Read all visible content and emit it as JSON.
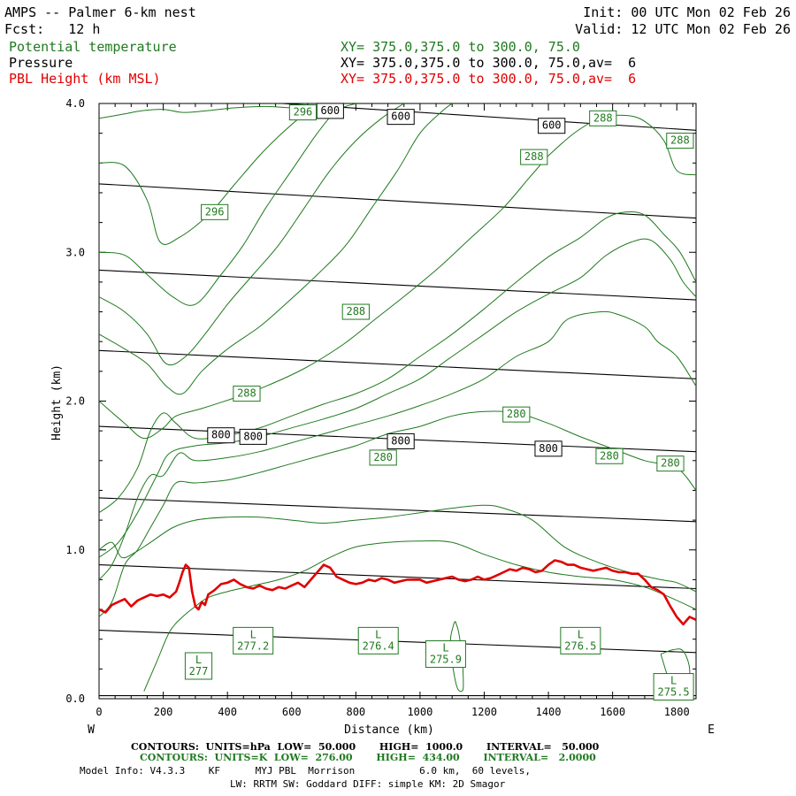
{
  "header": {
    "title": "AMPS -- Palmer 6-km nest",
    "fcst": "Fcst:   12 h",
    "init": "Init: 00 UTC Mon 02 Feb 26",
    "valid": "Valid: 12 UTC Mon 02 Feb 26",
    "field1": "Potential temperature",
    "field1_xy": "XY= 375.0,375.0 to 300.0, 75.0",
    "field2": "Pressure",
    "field2_xy": "XY= 375.0,375.0 to 300.0, 75.0,av=  6",
    "field3": "PBL Height (km MSL)",
    "field3_xy": "XY= 375.0,375.0 to 300.0, 75.0,av=  6"
  },
  "colors": {
    "theta": "#1f7a1f",
    "pressure": "#000000",
    "pbl": "#e00000"
  },
  "footer": {
    "line1": "CONTOURS:  UNITS=hPa  LOW=  50.000       HIGH=  1000.0       INTERVAL=   50.000",
    "line2": "CONTOURS:  UNITS=K  LOW=  276.00       HIGH=  434.00       INTERVAL=   2.0000",
    "line3": "Model Info: V4.3.3    KF      MYJ PBL  Morrison           6.0 km,  60 levels,",
    "line4": "LW: RRTM SW: Goddard DIFF: simple KM: 2D Smagor"
  },
  "chart_data": {
    "type": "line",
    "xlabel": "Distance (km)",
    "ylabel": "Height (km)",
    "xlim": [
      0,
      1860
    ],
    "ylim": [
      0.0,
      4.0
    ],
    "x_ticks": [
      0,
      200,
      400,
      600,
      800,
      1000,
      1200,
      1400,
      1600,
      1800
    ],
    "x_ticks_minor_step": 50,
    "y_ticks": [
      0.0,
      1.0,
      2.0,
      3.0,
      4.0
    ],
    "y_tick_labels": [
      "0.0",
      "1.0",
      "2.0",
      "3.0",
      "4.0"
    ],
    "y_ticks_minor_step": 0.2,
    "west_label": "W",
    "east_label": "E",
    "pressure_contours": [
      {
        "level": 1000,
        "x": [
          0,
          1860
        ],
        "y": [
          0.02,
          0.02
        ]
      },
      {
        "level": 950,
        "x": [
          0,
          1860
        ],
        "y": [
          0.46,
          0.31
        ]
      },
      {
        "level": 900,
        "x": [
          0,
          1860
        ],
        "y": [
          0.9,
          0.74
        ]
      },
      {
        "level": 850,
        "x": [
          0,
          1860
        ],
        "y": [
          1.35,
          1.19
        ]
      },
      {
        "level": 800,
        "x": [
          0,
          1860
        ],
        "y": [
          1.83,
          1.66
        ]
      },
      {
        "level": 750,
        "x": [
          0,
          1860
        ],
        "y": [
          2.34,
          2.15
        ]
      },
      {
        "level": 700,
        "x": [
          0,
          1860
        ],
        "y": [
          2.88,
          2.68
        ]
      },
      {
        "level": 650,
        "x": [
          0,
          1860
        ],
        "y": [
          3.46,
          3.23
        ]
      },
      {
        "level": 600,
        "x": [
          0,
          1860
        ],
        "y": [
          4.08,
          3.82
        ]
      }
    ],
    "pressure_labels": [
      {
        "text": "800",
        "x": 380,
        "y": 1.77
      },
      {
        "text": "800",
        "x": 480,
        "y": 1.76
      },
      {
        "text": "800",
        "x": 940,
        "y": 1.73
      },
      {
        "text": "800",
        "x": 1400,
        "y": 1.68
      },
      {
        "text": "600",
        "x": 720,
        "y": 3.95
      },
      {
        "text": "600",
        "x": 940,
        "y": 3.91
      },
      {
        "text": "600",
        "x": 1410,
        "y": 3.85
      }
    ],
    "theta_contours": [
      {
        "x": [
          0,
          80,
          130,
          200,
          260,
          330,
          420,
          520,
          620,
          700,
          740
        ],
        "y": [
          3.9,
          3.93,
          3.95,
          3.96,
          3.94,
          3.95,
          3.97,
          3.98,
          3.97,
          3.99,
          4.0
        ]
      },
      {
        "x": [
          0,
          80,
          150,
          190,
          250,
          340,
          420,
          500,
          560,
          640,
          700
        ],
        "y": [
          3.6,
          3.58,
          3.35,
          3.07,
          3.1,
          3.25,
          3.45,
          3.65,
          3.78,
          3.93,
          4.0
        ]
      },
      {
        "x": [
          0,
          80,
          150,
          230,
          300,
          380,
          450,
          520,
          600,
          680,
          740,
          800
        ],
        "y": [
          3.0,
          2.98,
          2.85,
          2.7,
          2.65,
          2.85,
          3.05,
          3.3,
          3.55,
          3.8,
          3.95,
          4.0
        ]
      },
      {
        "x": [
          0,
          80,
          150,
          210,
          270,
          330,
          400,
          480,
          560,
          640,
          720,
          800,
          880,
          950
        ],
        "y": [
          2.7,
          2.6,
          2.45,
          2.25,
          2.3,
          2.45,
          2.65,
          2.85,
          3.05,
          3.3,
          3.55,
          3.75,
          3.9,
          4.0
        ]
      },
      {
        "x": [
          0,
          80,
          150,
          210,
          260,
          320,
          400,
          500,
          580,
          680,
          770,
          850,
          930,
          1000,
          1070,
          1100
        ],
        "y": [
          2.45,
          2.35,
          2.25,
          2.1,
          2.05,
          2.2,
          2.35,
          2.5,
          2.65,
          2.85,
          3.05,
          3.3,
          3.55,
          3.8,
          3.95,
          4.0
        ]
      },
      {
        "x": [
          0,
          80,
          140,
          200,
          240,
          320,
          420,
          520,
          640,
          760,
          860,
          960,
          1060,
          1160,
          1260,
          1340,
          1400
        ],
        "y": [
          2.0,
          1.85,
          1.75,
          1.82,
          1.9,
          1.95,
          2.02,
          2.1,
          2.22,
          2.38,
          2.55,
          2.72,
          2.9,
          3.1,
          3.3,
          3.5,
          3.65
        ]
      },
      {
        "x": [
          1400,
          1480,
          1560,
          1640,
          1700,
          1760,
          1800,
          1860
        ],
        "y": [
          3.65,
          3.8,
          3.9,
          3.92,
          3.88,
          3.75,
          3.55,
          3.52
        ]
      },
      {
        "x": [
          0,
          60,
          120,
          160,
          200,
          240,
          300,
          400,
          500,
          600,
          700,
          800,
          900,
          1000,
          1100,
          1200,
          1300,
          1400,
          1500,
          1580,
          1640,
          1700,
          1760,
          1810,
          1860
        ],
        "y": [
          1.25,
          1.35,
          1.55,
          1.8,
          1.92,
          1.85,
          1.75,
          1.77,
          1.82,
          1.9,
          1.98,
          2.05,
          2.15,
          2.3,
          2.45,
          2.62,
          2.8,
          2.97,
          3.1,
          3.23,
          3.27,
          3.25,
          3.12,
          3.0,
          2.8
        ]
      },
      {
        "x": [
          0,
          60,
          120,
          180,
          220,
          300,
          400,
          500,
          600,
          700,
          800,
          900,
          1000,
          1100,
          1200,
          1300,
          1400,
          1500,
          1580,
          1660,
          1720,
          1780,
          1820,
          1860
        ],
        "y": [
          0.95,
          1.05,
          1.25,
          1.5,
          1.65,
          1.7,
          1.72,
          1.76,
          1.82,
          1.88,
          1.95,
          2.05,
          2.15,
          2.3,
          2.45,
          2.6,
          2.72,
          2.83,
          2.98,
          3.07,
          3.08,
          2.95,
          2.8,
          2.7
        ]
      },
      {
        "x": [
          0,
          40,
          80,
          120,
          160,
          200,
          250,
          300,
          400,
          500,
          600,
          700,
          800,
          900,
          1000,
          1100,
          1200,
          1300,
          1400,
          1460,
          1560,
          1620,
          1700,
          1740,
          1800,
          1860
        ],
        "y": [
          0.8,
          0.9,
          1.1,
          1.35,
          1.5,
          1.5,
          1.65,
          1.6,
          1.62,
          1.66,
          1.72,
          1.78,
          1.84,
          1.9,
          1.97,
          2.05,
          2.15,
          2.3,
          2.4,
          2.55,
          2.6,
          2.58,
          2.5,
          2.4,
          2.3,
          2.1
        ]
      },
      {
        "x": [
          0,
          40,
          80,
          120,
          160,
          200,
          240,
          300,
          400,
          500,
          600,
          700,
          800,
          900,
          1000,
          1100,
          1200,
          1300,
          1400,
          1500,
          1600,
          1700,
          1800,
          1860
        ],
        "y": [
          0.55,
          0.65,
          0.9,
          1.0,
          1.15,
          1.3,
          1.45,
          1.45,
          1.47,
          1.52,
          1.58,
          1.64,
          1.7,
          1.78,
          1.83,
          1.9,
          1.93,
          1.92,
          1.85,
          1.76,
          1.68,
          1.6,
          1.55,
          1.4
        ]
      },
      {
        "x": [
          0,
          40,
          70,
          110,
          160,
          230,
          300,
          400,
          500,
          600,
          700,
          800,
          900,
          1000,
          1100,
          1200,
          1260,
          1350,
          1450,
          1550,
          1650,
          1750,
          1800,
          1860
        ],
        "y": [
          1.0,
          1.05,
          0.95,
          0.98,
          1.05,
          1.15,
          1.2,
          1.22,
          1.22,
          1.2,
          1.18,
          1.2,
          1.22,
          1.25,
          1.28,
          1.3,
          1.28,
          1.2,
          1.02,
          0.92,
          0.85,
          0.8,
          0.78,
          0.72
        ]
      },
      {
        "x": [
          140,
          180,
          220,
          260,
          300,
          340,
          400,
          480,
          560,
          640,
          720,
          800,
          900,
          1000,
          1100,
          1200,
          1300,
          1400,
          1500,
          1600,
          1700,
          1780,
          1860
        ],
        "y": [
          0.05,
          0.25,
          0.45,
          0.55,
          0.62,
          0.68,
          0.72,
          0.76,
          0.8,
          0.86,
          0.95,
          1.02,
          1.05,
          1.06,
          1.05,
          0.97,
          0.9,
          0.85,
          0.82,
          0.8,
          0.75,
          0.68,
          0.6
        ]
      },
      {
        "x": [
          1110,
          1120,
          1130,
          1135,
          1130,
          1115,
          1100,
          1095,
          1105,
          1110
        ],
        "y": [
          0.52,
          0.45,
          0.3,
          0.1,
          0.05,
          0.08,
          0.25,
          0.4,
          0.5,
          0.52
        ]
      },
      {
        "x": [
          1750,
          1790,
          1820,
          1840,
          1830,
          1790,
          1750
        ],
        "y": [
          0.3,
          0.33,
          0.32,
          0.2,
          0.05,
          0.05,
          0.3
        ]
      }
    ],
    "theta_labels": [
      {
        "text": "296",
        "x": 635,
        "y": 3.94
      },
      {
        "text": "296",
        "x": 360,
        "y": 3.27
      },
      {
        "text": "288",
        "x": 1570,
        "y": 3.9
      },
      {
        "text": "288",
        "x": 1810,
        "y": 3.75
      },
      {
        "text": "288",
        "x": 1355,
        "y": 3.64
      },
      {
        "text": "288",
        "x": 800,
        "y": 2.6
      },
      {
        "text": "288",
        "x": 460,
        "y": 2.05
      },
      {
        "text": "280",
        "x": 1300,
        "y": 1.91
      },
      {
        "text": "280",
        "x": 885,
        "y": 1.62
      },
      {
        "text": "280",
        "x": 1590,
        "y": 1.63
      },
      {
        "text": "280",
        "x": 1780,
        "y": 1.58
      }
    ],
    "lows": [
      {
        "symbol": "L",
        "value": "277",
        "x": 310,
        "y": 0.22
      },
      {
        "symbol": "L",
        "value": "277.2",
        "x": 480,
        "y": 0.39
      },
      {
        "symbol": "L",
        "value": "276.4",
        "x": 870,
        "y": 0.39
      },
      {
        "symbol": "L",
        "value": "275.9",
        "x": 1080,
        "y": 0.3
      },
      {
        "symbol": "L",
        "value": "276.5",
        "x": 1500,
        "y": 0.39
      },
      {
        "symbol": "L",
        "value": "275.5",
        "x": 1790,
        "y": 0.08
      }
    ],
    "pbl_height": {
      "name": "PBL Height (km MSL)",
      "x": [
        0,
        20,
        40,
        60,
        80,
        100,
        120,
        140,
        160,
        180,
        200,
        220,
        240,
        250,
        260,
        270,
        280,
        290,
        300,
        310,
        320,
        330,
        340,
        360,
        380,
        400,
        420,
        440,
        460,
        480,
        500,
        520,
        540,
        560,
        580,
        600,
        620,
        640,
        660,
        680,
        700,
        720,
        740,
        760,
        780,
        800,
        820,
        840,
        860,
        880,
        900,
        920,
        940,
        960,
        980,
        1000,
        1020,
        1040,
        1060,
        1080,
        1100,
        1120,
        1140,
        1160,
        1180,
        1200,
        1220,
        1240,
        1260,
        1280,
        1300,
        1320,
        1340,
        1360,
        1380,
        1400,
        1420,
        1440,
        1460,
        1480,
        1500,
        1520,
        1540,
        1560,
        1580,
        1600,
        1620,
        1640,
        1660,
        1680,
        1700,
        1720,
        1740,
        1760,
        1780,
        1800,
        1820,
        1840,
        1860
      ],
      "y": [
        0.6,
        0.58,
        0.63,
        0.65,
        0.67,
        0.62,
        0.66,
        0.68,
        0.7,
        0.69,
        0.7,
        0.68,
        0.72,
        0.78,
        0.85,
        0.9,
        0.88,
        0.72,
        0.62,
        0.6,
        0.65,
        0.63,
        0.7,
        0.73,
        0.77,
        0.78,
        0.8,
        0.77,
        0.75,
        0.74,
        0.76,
        0.74,
        0.73,
        0.75,
        0.74,
        0.76,
        0.78,
        0.75,
        0.8,
        0.85,
        0.9,
        0.88,
        0.82,
        0.8,
        0.78,
        0.77,
        0.78,
        0.8,
        0.79,
        0.81,
        0.8,
        0.78,
        0.79,
        0.8,
        0.8,
        0.8,
        0.78,
        0.79,
        0.8,
        0.81,
        0.82,
        0.8,
        0.79,
        0.8,
        0.82,
        0.8,
        0.81,
        0.83,
        0.85,
        0.87,
        0.86,
        0.88,
        0.87,
        0.85,
        0.86,
        0.9,
        0.93,
        0.92,
        0.9,
        0.9,
        0.88,
        0.87,
        0.86,
        0.87,
        0.88,
        0.86,
        0.85,
        0.85,
        0.84,
        0.84,
        0.8,
        0.75,
        0.73,
        0.7,
        0.62,
        0.55,
        0.5,
        0.55,
        0.53
      ]
    }
  }
}
